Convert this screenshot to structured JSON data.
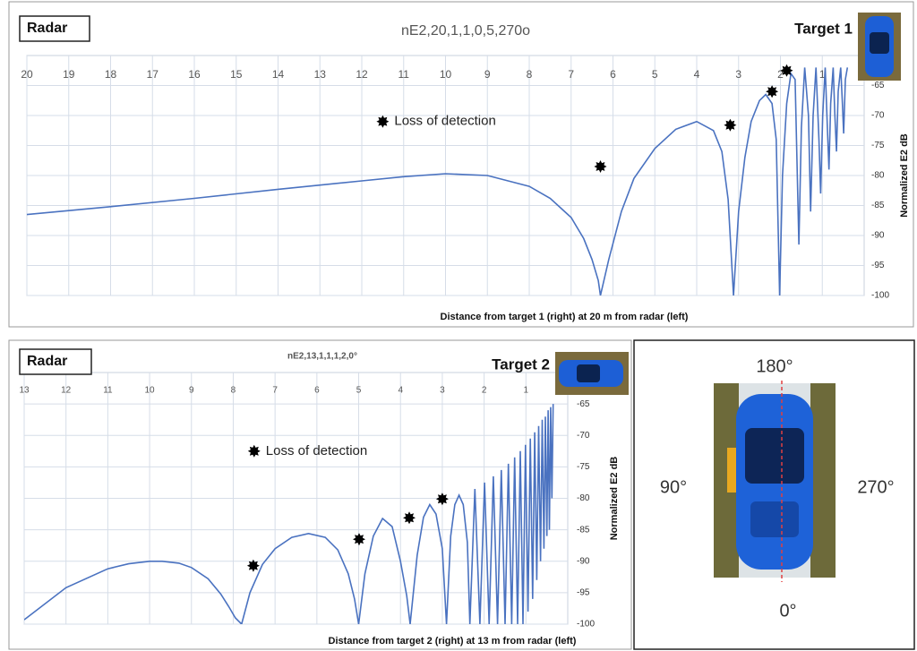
{
  "chart_data": [
    {
      "type": "line",
      "title": "nE2,20,1,1,0,5,270o",
      "radar_label": "Radar",
      "target_label": "Target 1",
      "x_label": "Distance from target 1 (right) at 20 m from radar (left)",
      "y_label": "Normalized E2 dB",
      "xlim": [
        20,
        0
      ],
      "ylim": [
        -100,
        -60
      ],
      "xticks": [
        20,
        19,
        18,
        17,
        16,
        15,
        14,
        13,
        12,
        11,
        10,
        9,
        8,
        7,
        6,
        5,
        4,
        3,
        2,
        1
      ],
      "yticks": [
        -65,
        -70,
        -75,
        -80,
        -85,
        -90,
        -95,
        -100
      ],
      "grid": true,
      "series": [
        {
          "type": "line",
          "color": "#4a72c0",
          "x": [
            20,
            18,
            16,
            14,
            12,
            11,
            10,
            9,
            8,
            7.5,
            7,
            6.7,
            6.5,
            6.35,
            6.3,
            6.1,
            5.8,
            5.5,
            5,
            4.5,
            4,
            3.6,
            3.4,
            3.25,
            3.12,
            3.0,
            2.85,
            2.7,
            2.5,
            2.35,
            2.2,
            2.1,
            2.02,
            1.95,
            1.85,
            1.75,
            1.65,
            1.56,
            1.5,
            1.42,
            1.33,
            1.28,
            1.22,
            1.15,
            1.08,
            1.04,
            0.99,
            0.93,
            0.88,
            0.84,
            0.8,
            0.74,
            0.7,
            0.66,
            0.62,
            0.56,
            0.52,
            0.49,
            0.45,
            0.4
          ],
          "values": [
            -86.5,
            -85.2,
            -83.8,
            -82.3,
            -80.9,
            -80.2,
            -79.7,
            -80.0,
            -81.8,
            -83.8,
            -87.0,
            -90.5,
            -94,
            -97.5,
            -100,
            -94,
            -86,
            -80.5,
            -75.5,
            -72.3,
            -71.0,
            -72.5,
            -76,
            -84,
            -100,
            -86,
            -77,
            -71,
            -67.5,
            -66.5,
            -68,
            -74,
            -100,
            -80,
            -68,
            -63,
            -64,
            -91.5,
            -72,
            -62,
            -70,
            -86,
            -70,
            -62,
            -74,
            -83,
            -70,
            -62,
            -72,
            -79,
            -68,
            -62,
            -70,
            -76,
            -66,
            -62,
            -68,
            -73,
            -64,
            -62
          ]
        },
        {
          "type": "scatter",
          "name": "Loss of detection",
          "color": "#000000",
          "x": [
            6.3,
            3.2,
            2.2,
            1.85
          ],
          "values": [
            -78.5,
            -71.6,
            -66,
            -62.5
          ]
        }
      ]
    },
    {
      "type": "line",
      "title": "nE2,13,1,1,1,2,0°",
      "radar_label": "Radar",
      "target_label": "Target 2",
      "x_label": "Distance from target 2  (right)  at 13 m  from radar (left)",
      "y_label": "Normalized E2 dB",
      "xlim": [
        13,
        0
      ],
      "ylim": [
        -100,
        -60
      ],
      "xticks": [
        13,
        12,
        11,
        10,
        9,
        8,
        7,
        6,
        5,
        4,
        3,
        2,
        1
      ],
      "yticks": [
        -65,
        -70,
        -75,
        -80,
        -85,
        -90,
        -95,
        -100
      ],
      "grid": true,
      "series": [
        {
          "type": "line",
          "color": "#4a72c0",
          "x": [
            13,
            12,
            11,
            10.5,
            10,
            9.7,
            9.3,
            9,
            8.6,
            8.3,
            8.1,
            7.95,
            7.8,
            7.6,
            7.3,
            7,
            6.6,
            6.2,
            5.8,
            5.5,
            5.25,
            5.1,
            5.0,
            4.85,
            4.65,
            4.43,
            4.2,
            4.0,
            3.85,
            3.77,
            3.6,
            3.45,
            3.3,
            3.15,
            3.0,
            2.9,
            2.8,
            2.7,
            2.6,
            2.5,
            2.4,
            2.34,
            2.22,
            2.1,
            1.99,
            1.88,
            1.78,
            1.68,
            1.59,
            1.5,
            1.42,
            1.34,
            1.27,
            1.2,
            1.135,
            1.07,
            1.01,
            0.95,
            0.895,
            0.84,
            0.79,
            0.74,
            0.695,
            0.65,
            0.61,
            0.57,
            0.535,
            0.5,
            0.47,
            0.44,
            0.41,
            0.38,
            0.35
          ],
          "values": [
            -99.3,
            -94.2,
            -91.2,
            -90.4,
            -90.0,
            -90.0,
            -90.3,
            -91.0,
            -92.8,
            -95.2,
            -97.3,
            -99.0,
            -100,
            -95,
            -90.5,
            -88,
            -86.2,
            -85.6,
            -86.2,
            -88.2,
            -92,
            -96,
            -100,
            -92,
            -86,
            -83.2,
            -84.5,
            -90,
            -95.5,
            -100,
            -89,
            -83,
            -81,
            -82.5,
            -88,
            -100,
            -86,
            -81,
            -79.5,
            -81,
            -87,
            -100,
            -78.5,
            -100,
            -77.5,
            -100,
            -76.5,
            -100,
            -75.5,
            -100,
            -74.5,
            -100,
            -73.5,
            -100,
            -72.5,
            -100,
            -71.5,
            -98,
            -70.5,
            -96,
            -69.5,
            -93,
            -68.5,
            -90,
            -67.5,
            -88,
            -67,
            -86,
            -66,
            -85,
            -65.5,
            -80,
            -65
          ]
        },
        {
          "type": "scatter",
          "name": "Loss of detection",
          "color": "#000000",
          "x": [
            7.52,
            4.99,
            3.79,
            3.0
          ],
          "values": [
            -90.7,
            -86.5,
            -83.1,
            -80.1
          ]
        }
      ]
    }
  ],
  "orientation_panel": {
    "top": "180°",
    "left": "90°",
    "right": "270°",
    "bottom": "0°"
  }
}
